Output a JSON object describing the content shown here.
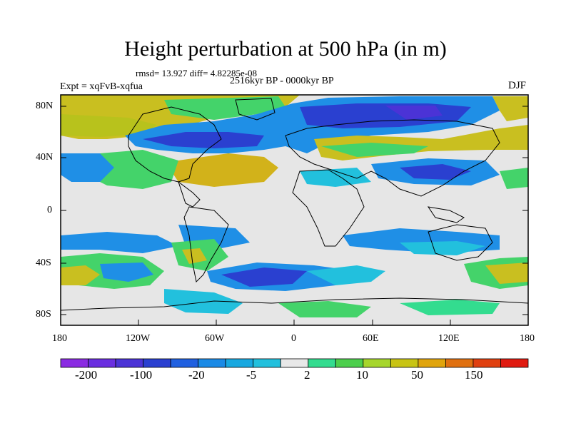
{
  "title": "Height perturbation at 500 hPa (in m)",
  "stats": "rmsd= 13.927 diff= 4.82285e-08",
  "period": "2516kyr BP - 0000kyr BP",
  "experiment": "Expt = xqFvB-xqfua",
  "season": "DJF",
  "axes": {
    "lat_labels": [
      "80N",
      "40N",
      "0",
      "40S",
      "80S"
    ],
    "lon_labels": [
      "180",
      "120W",
      "60W",
      "0",
      "60E",
      "120E",
      "180"
    ]
  },
  "colorbar": {
    "colors": [
      "#8a2be2",
      "#6a2ee0",
      "#4b33d6",
      "#2a3fd0",
      "#2060e0",
      "#1a8ae6",
      "#18a8e0",
      "#22c0dd",
      "#e8e8e8",
      "#33dc8f",
      "#4ccf4c",
      "#a6d62c",
      "#c8c414",
      "#e0a40c",
      "#e07010",
      "#e04010",
      "#e01a10"
    ],
    "labels": [
      "-200",
      "-100",
      "-20",
      "-5",
      "2",
      "10",
      "50",
      "150"
    ]
  },
  "palette": {
    "ocean_neutral": "#e6e6e6",
    "land": "#000000",
    "frame": "#000000"
  }
}
